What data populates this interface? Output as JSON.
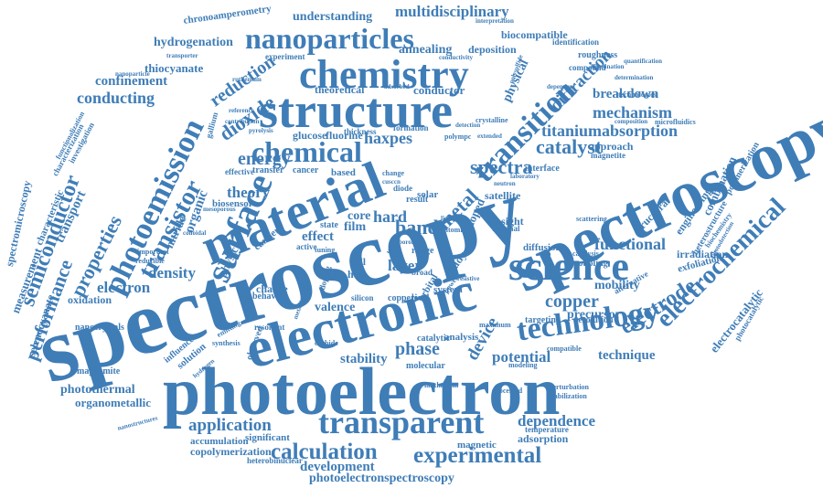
{
  "colors": {
    "word": "#3f7db7",
    "background": "#ffffff"
  },
  "words": [
    "photoelectron",
    "spectroscopy",
    "spectroscopy",
    "electronic",
    "material",
    "structure",
    "chemistry",
    "nanoparticles",
    "science",
    "technology",
    "transparent",
    "surface",
    "photoemission",
    "electrochemical",
    "transistor",
    "semiconductor",
    "transition",
    "chemical",
    "experimental",
    "calculation",
    "application",
    "dependence",
    "development",
    "photoelectronspectroscopy",
    "performance",
    "properties",
    "functional",
    "electrode",
    "copper",
    "mobility",
    "catalyst",
    "spectra",
    "titaniumabsorption",
    "mechanism",
    "breakdown",
    "diffraction",
    "understanding",
    "multidisciplinary",
    "hydrogenation",
    "chronoamperometry",
    "annealing",
    "conducting",
    "confinement",
    "reduction",
    "dioxide",
    "energy",
    "theory",
    "density",
    "electron",
    "layer",
    "band",
    "phase",
    "stability",
    "potential",
    "technique",
    "device",
    "photothermal",
    "organometallic",
    "copolymerization",
    "accumulation",
    "magnetic",
    "adsorption",
    "precursor",
    "irradiation",
    "combination",
    "electrocatalytic",
    "thiocyanate",
    "selenocyanate",
    "measurement",
    "spectromicroscopy",
    "characteristic",
    "transport",
    "organic",
    "nitride",
    "physic",
    "oxidation",
    "haxpes",
    "glucose",
    "fluorine",
    "conductor",
    "theoretical",
    "biocompatible",
    "deposition",
    "physical",
    "approach",
    "polymerization",
    "engineering",
    "exfoliation",
    "metal",
    "hard",
    "core",
    "film",
    "effect",
    "valence",
    "charge",
    "insight",
    "diffusion",
    "structural",
    "coupling",
    "resolution",
    "targeting",
    "analysis",
    "catalytic",
    "maghemite",
    "nanocrystals",
    "solution",
    "influence",
    "significant",
    "heterobinuclear",
    "biosensor",
    "satellite",
    "interface",
    "doped",
    "system",
    "hole",
    "cell",
    "study",
    "based",
    "cancer",
    "transfer",
    "effective",
    "thickness",
    "formation",
    "polympc",
    "magnetite",
    "roughness",
    "identification",
    "compound",
    "quantification",
    "experiment",
    "nanoparticle",
    "transporter",
    "investigation",
    "functionalization",
    "characterization",
    "alternative",
    "photocatalytic",
    "molecular",
    "temperature",
    "modeling",
    "lanthanum",
    "processed",
    "perturbation",
    "stabilization",
    "nanostructures",
    "reducible",
    "important",
    "carrier",
    "resonant",
    "observed",
    "synthesis",
    "emitting",
    "behavior",
    "copperi",
    "silicon",
    "maximum",
    "compatible",
    "scattering",
    "catalysis",
    "heterostructure",
    "photodetection",
    "biochemistry",
    "technologies",
    "determination",
    "microfluidics",
    "composition",
    "illumination",
    "dependent",
    "crystalline",
    "polysulfide",
    "interpretation",
    "conductivity",
    "adsorbed",
    "detection",
    "extended",
    "laboratory",
    "neutron",
    "solar",
    "range",
    "broad",
    "orbital",
    "level",
    "state",
    "active",
    "tuning",
    "doping",
    "diode",
    "result",
    "change",
    "cusccn",
    "gallium",
    "pyrolysis",
    "ruthenium",
    "reference",
    "contribution",
    "colloidal",
    "mesoporous",
    "carbide",
    "hydrogen",
    "metallic",
    "atomic",
    "ligand",
    "thermal",
    "light",
    "boron",
    "power",
    "resistive"
  ]
}
